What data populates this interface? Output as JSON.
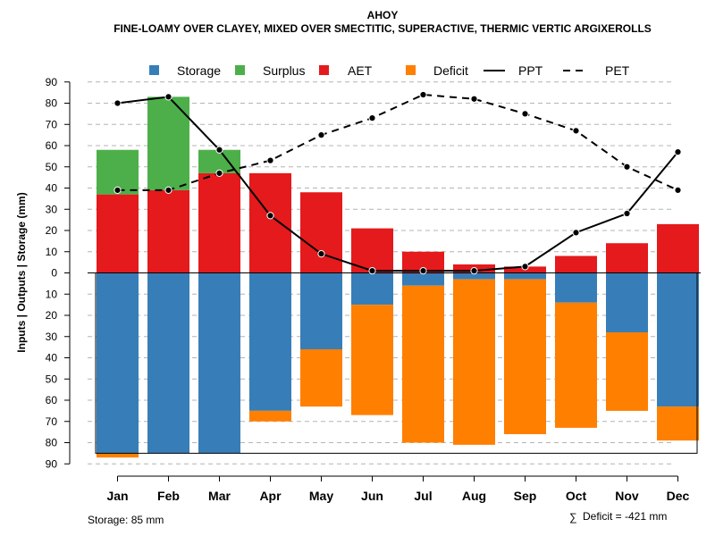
{
  "chart_data": {
    "type": "bar",
    "title": "AHOY",
    "subtitle": "FINE-LOAMY OVER CLAYEY, MIXED OVER SMECTITIC, SUPERACTIVE, THERMIC VERTIC ARGIXEROLLS",
    "ylabel": "Inputs | Outputs | Storage    (mm)",
    "ylim": [
      -90,
      90
    ],
    "y_ticks": [
      90,
      80,
      70,
      60,
      50,
      40,
      30,
      20,
      10,
      0,
      10,
      20,
      30,
      40,
      50,
      60,
      70,
      80,
      90
    ],
    "categories": [
      "Jan",
      "Feb",
      "Mar",
      "Apr",
      "May",
      "Jun",
      "Jul",
      "Aug",
      "Sep",
      "Oct",
      "Nov",
      "Dec"
    ],
    "series": [
      {
        "name": "Storage",
        "color": "#377EB8",
        "values": [
          -85,
          -85,
          -85,
          -65,
          -36,
          -15,
          -6,
          -3,
          -3,
          -14,
          -28,
          -63
        ]
      },
      {
        "name": "Deficit",
        "color": "#FF7F00",
        "values": [
          -2,
          0,
          0,
          -5,
          -27,
          -52,
          -74,
          -78,
          -73,
          -59,
          -37,
          -16
        ]
      },
      {
        "name": "AET",
        "color": "#E41A1C",
        "values": [
          37,
          39,
          47,
          47,
          38,
          21,
          10,
          4,
          3,
          8,
          14,
          23
        ]
      },
      {
        "name": "Surplus",
        "color": "#4DAF4A",
        "values": [
          21,
          44,
          11,
          0,
          0,
          0,
          0,
          0,
          0,
          0,
          0,
          0
        ]
      },
      {
        "name": "PPT",
        "color": "#000000",
        "style": "solid",
        "values": [
          80,
          83,
          58,
          27,
          9,
          1,
          1,
          1,
          3,
          19,
          28,
          57
        ]
      },
      {
        "name": "PET",
        "color": "#000000",
        "style": "dashed",
        "values": [
          39,
          39,
          47,
          53,
          65,
          73,
          84,
          82,
          75,
          67,
          50,
          39
        ]
      }
    ],
    "legend": {
      "placement": "top",
      "items": [
        {
          "label": "Storage",
          "kind": "box",
          "color": "#377EB8"
        },
        {
          "label": "Surplus",
          "kind": "box",
          "color": "#4DAF4A"
        },
        {
          "label": "AET",
          "kind": "box",
          "color": "#E41A1C"
        },
        {
          "label": "Deficit",
          "kind": "box",
          "color": "#FF7F00"
        },
        {
          "label": "PPT",
          "kind": "line-solid",
          "color": "#000000"
        },
        {
          "label": "PET",
          "kind": "line-dashed",
          "color": "#000000"
        }
      ]
    },
    "storage_capacity": 85,
    "grid": true
  },
  "notes": {
    "storage": "Storage: 85 mm",
    "deficit": "Deficit = -421 mm",
    "deficit_symbol": "∑"
  }
}
